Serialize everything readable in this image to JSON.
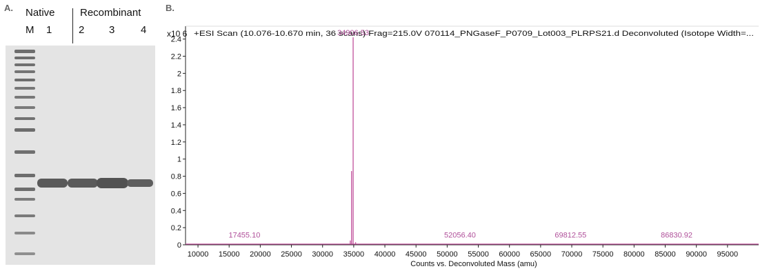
{
  "panel_a": {
    "letter": "A.",
    "header_native": "Native",
    "header_recombinant": "Recombinant",
    "lanes": [
      "M",
      "1",
      "2",
      "3",
      "4"
    ]
  },
  "panel_b": {
    "letter": "B."
  },
  "colors": {
    "gel_background": "#e4e4e4",
    "marker_band": "#6d6d6d",
    "protein_band": "#5a5a5a",
    "spectrum_trace": "#c0509a",
    "peak_label": "#b0509a",
    "axis": "#222222"
  },
  "chart_data": {
    "type": "line",
    "title": "+ESI Scan (10.076-10.670 min, 36 scans) Frag=215.0V 070114_PNGaseF_P0709_Lot003_PLRPS21.d   Deconvoluted (Isotope Width=...",
    "y_multiplier_label": "x10 6",
    "xlabel": "Counts vs. Deconvoluted Mass (amu)",
    "ylabel": "",
    "xlim": [
      8000,
      100000
    ],
    "ylim": [
      0,
      2.55
    ],
    "x_ticks": [
      10000,
      15000,
      20000,
      25000,
      30000,
      35000,
      40000,
      45000,
      50000,
      55000,
      60000,
      65000,
      70000,
      75000,
      80000,
      85000,
      90000,
      95000
    ],
    "y_ticks": [
      0,
      0.2,
      0.4,
      0.6,
      0.8,
      1,
      1.2,
      1.4,
      1.6,
      1.8,
      2,
      2.2,
      2.4
    ],
    "y_tick_labels": [
      "0",
      "0.2",
      "0.4",
      "0.6",
      "0.8",
      "1",
      "1.2",
      "1.4",
      "1.6",
      "1.8",
      "2",
      "2.2",
      "2.4"
    ],
    "peaks": [
      {
        "mass": 34906.53,
        "intensity": 2.42
      },
      {
        "mass": 34650,
        "intensity": 0.86
      },
      {
        "mass": 34450,
        "intensity": 0.05
      },
      {
        "mass": 35300,
        "intensity": 0.03
      },
      {
        "mass": 17455.1,
        "intensity": 0.005
      },
      {
        "mass": 52056.4,
        "intensity": 0.005
      },
      {
        "mass": 69812.55,
        "intensity": 0.005
      },
      {
        "mass": 86830.92,
        "intensity": 0.005
      }
    ],
    "peak_labels": [
      {
        "text": "34906.53",
        "mass": 34906.53,
        "intensity": 2.42
      },
      {
        "text": "17455.10",
        "mass": 17455.1,
        "intensity": 0.06
      },
      {
        "text": "52056.40",
        "mass": 52056.4,
        "intensity": 0.06
      },
      {
        "text": "69812.55",
        "mass": 69812.55,
        "intensity": 0.06
      },
      {
        "text": "86830.92",
        "mass": 86830.92,
        "intensity": 0.06
      }
    ]
  }
}
